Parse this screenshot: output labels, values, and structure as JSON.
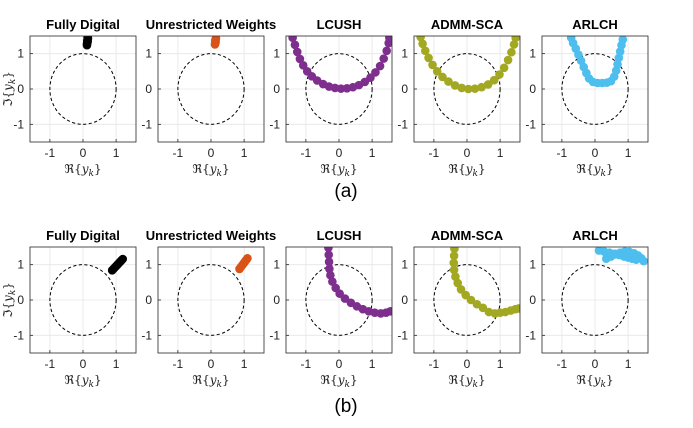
{
  "chart_data": [
    {
      "id": "a",
      "caption": "(a)",
      "type": "scatter",
      "xlim": [
        -1.6,
        1.6
      ],
      "ylim": [
        -1.5,
        1.5
      ],
      "xticks": [
        -1,
        0,
        1
      ],
      "yticks": [
        -1,
        0,
        1
      ],
      "x_tick_labels": [
        "-1",
        "0",
        "1"
      ],
      "y_tick_labels": [
        "-1",
        "0",
        "1"
      ],
      "xlabel": "ℜ{y_k}",
      "ylabel": "ℑ{y_k}",
      "grid": true,
      "reference": "unit circle (dashed)",
      "panels": [
        {
          "title": "Fully Digital",
          "color": "#000000",
          "points": [
            [
              0.12,
              1.24
            ],
            [
              0.12,
              1.28
            ],
            [
              0.13,
              1.31
            ],
            [
              0.14,
              1.34
            ],
            [
              0.13,
              1.37
            ],
            [
              0.14,
              1.4
            ],
            [
              0.15,
              1.43
            ],
            [
              0.14,
              1.46
            ]
          ]
        },
        {
          "title": "Unrestricted Weights",
          "color": "#D95319",
          "points": [
            [
              0.12,
              1.26
            ],
            [
              0.13,
              1.3
            ],
            [
              0.14,
              1.33
            ],
            [
              0.13,
              1.36
            ],
            [
              0.14,
              1.4
            ],
            [
              0.15,
              1.43
            ]
          ]
        },
        {
          "title": "LCUSH",
          "color": "#7E2F8E",
          "points": [
            [
              -1.4,
              1.45
            ],
            [
              -1.33,
              1.25
            ],
            [
              -1.26,
              1.05
            ],
            [
              -1.18,
              0.85
            ],
            [
              -1.08,
              0.67
            ],
            [
              -0.96,
              0.5
            ],
            [
              -0.82,
              0.36
            ],
            [
              -0.66,
              0.24
            ],
            [
              -0.48,
              0.14
            ],
            [
              -0.3,
              0.07
            ],
            [
              -0.12,
              0.03
            ],
            [
              0.06,
              0.01
            ],
            [
              0.24,
              0.02
            ],
            [
              0.42,
              0.05
            ],
            [
              0.6,
              0.11
            ],
            [
              0.78,
              0.2
            ],
            [
              0.95,
              0.32
            ],
            [
              1.1,
              0.47
            ],
            [
              1.24,
              0.65
            ],
            [
              1.35,
              0.86
            ],
            [
              1.44,
              1.08
            ],
            [
              1.5,
              1.3
            ],
            [
              1.52,
              1.45
            ]
          ]
        },
        {
          "title": "ADMM-SCA",
          "color": "#A2A821",
          "points": [
            [
              -1.4,
              1.47
            ],
            [
              -1.34,
              1.28
            ],
            [
              -1.26,
              1.08
            ],
            [
              -1.16,
              0.88
            ],
            [
              -1.04,
              0.68
            ],
            [
              -0.9,
              0.5
            ],
            [
              -0.74,
              0.34
            ],
            [
              -0.56,
              0.21
            ],
            [
              -0.36,
              0.1
            ],
            [
              -0.16,
              0.03
            ],
            [
              0.04,
              0.0
            ],
            [
              0.24,
              0.01
            ],
            [
              0.44,
              0.05
            ],
            [
              0.64,
              0.13
            ],
            [
              0.82,
              0.25
            ],
            [
              0.98,
              0.41
            ],
            [
              1.12,
              0.6
            ],
            [
              1.24,
              0.82
            ],
            [
              1.34,
              1.04
            ],
            [
              1.42,
              1.26
            ],
            [
              1.47,
              1.45
            ]
          ]
        },
        {
          "title": "ARLCH",
          "color": "#4DBEEE",
          "points": [
            [
              -0.72,
              1.45
            ],
            [
              -0.66,
              1.3
            ],
            [
              -0.58,
              1.14
            ],
            [
              -0.5,
              0.97
            ],
            [
              -0.42,
              0.8
            ],
            [
              -0.34,
              0.62
            ],
            [
              -0.26,
              0.45
            ],
            [
              -0.18,
              0.3
            ],
            [
              -0.06,
              0.2
            ],
            [
              0.08,
              0.17
            ],
            [
              0.22,
              0.17
            ],
            [
              0.36,
              0.18
            ],
            [
              0.48,
              0.22
            ],
            [
              0.58,
              0.35
            ],
            [
              0.64,
              0.52
            ],
            [
              0.68,
              0.7
            ],
            [
              0.72,
              0.88
            ],
            [
              0.76,
              1.06
            ],
            [
              0.8,
              1.24
            ],
            [
              0.84,
              1.4
            ]
          ]
        }
      ]
    },
    {
      "id": "b",
      "caption": "(b)",
      "type": "scatter",
      "xlim": [
        -1.6,
        1.6
      ],
      "ylim": [
        -1.5,
        1.5
      ],
      "xticks": [
        -1,
        0,
        1
      ],
      "yticks": [
        -1,
        0,
        1
      ],
      "x_tick_labels": [
        "-1",
        "0",
        "1"
      ],
      "y_tick_labels": [
        "-1",
        "0",
        "1"
      ],
      "xlabel": "ℜ{y_k}",
      "ylabel": "ℑ{y_k}",
      "grid": true,
      "reference": "unit circle (dashed)",
      "panels": [
        {
          "title": "Fully Digital",
          "color": "#000000",
          "points": [
            [
              0.88,
              0.84
            ],
            [
              0.92,
              0.88
            ],
            [
              0.96,
              0.92
            ],
            [
              1.0,
              0.96
            ],
            [
              1.04,
              1.0
            ],
            [
              1.08,
              1.04
            ],
            [
              1.12,
              1.08
            ],
            [
              1.16,
              1.12
            ],
            [
              1.2,
              1.16
            ]
          ]
        },
        {
          "title": "Unrestricted Weights",
          "color": "#D95319",
          "points": [
            [
              0.86,
              0.88
            ],
            [
              0.9,
              0.93
            ],
            [
              0.94,
              0.98
            ],
            [
              0.98,
              1.03
            ],
            [
              1.02,
              1.08
            ],
            [
              1.06,
              1.13
            ],
            [
              1.1,
              1.18
            ]
          ]
        },
        {
          "title": "LCUSH",
          "color": "#7E2F8E",
          "points": [
            [
              -0.32,
              1.48
            ],
            [
              -0.31,
              1.28
            ],
            [
              -0.3,
              1.08
            ],
            [
              -0.29,
              0.88
            ],
            [
              -0.26,
              0.7
            ],
            [
              -0.2,
              0.52
            ],
            [
              -0.1,
              0.34
            ],
            [
              0.02,
              0.18
            ],
            [
              0.18,
              0.04
            ],
            [
              0.36,
              -0.08
            ],
            [
              0.54,
              -0.18
            ],
            [
              0.72,
              -0.26
            ],
            [
              0.9,
              -0.32
            ],
            [
              1.08,
              -0.36
            ],
            [
              1.26,
              -0.38
            ],
            [
              1.42,
              -0.36
            ],
            [
              1.55,
              -0.32
            ]
          ]
        },
        {
          "title": "ADMM-SCA",
          "color": "#A2A821",
          "points": [
            [
              -0.38,
              1.45
            ],
            [
              -0.39,
              1.25
            ],
            [
              -0.4,
              1.05
            ],
            [
              -0.39,
              0.85
            ],
            [
              -0.35,
              0.66
            ],
            [
              -0.28,
              0.48
            ],
            [
              -0.18,
              0.3
            ],
            [
              -0.04,
              0.14
            ],
            [
              0.12,
              0.0
            ],
            [
              0.3,
              -0.12
            ],
            [
              0.48,
              -0.22
            ],
            [
              0.66,
              -0.34
            ],
            [
              0.84,
              -0.38
            ],
            [
              1.0,
              -0.36
            ],
            [
              1.16,
              -0.34
            ],
            [
              1.32,
              -0.3
            ],
            [
              1.46,
              -0.26
            ],
            [
              1.56,
              -0.24
            ]
          ]
        },
        {
          "title": "ARLCH",
          "color": "#4DBEEE",
          "points": [
            [
              0.12,
              1.4
            ],
            [
              0.28,
              1.37
            ],
            [
              0.44,
              1.34
            ],
            [
              0.6,
              1.31
            ],
            [
              0.74,
              1.27
            ],
            [
              0.88,
              1.23
            ],
            [
              1.0,
              1.2
            ],
            [
              1.12,
              1.17
            ],
            [
              1.24,
              1.14
            ],
            [
              0.34,
              1.17
            ],
            [
              0.48,
              1.23
            ],
            [
              0.62,
              1.29
            ],
            [
              0.76,
              1.34
            ],
            [
              0.9,
              1.37
            ],
            [
              1.04,
              1.36
            ],
            [
              1.18,
              1.32
            ],
            [
              1.3,
              1.26
            ],
            [
              1.4,
              1.18
            ],
            [
              1.47,
              1.1
            ]
          ]
        }
      ]
    }
  ]
}
